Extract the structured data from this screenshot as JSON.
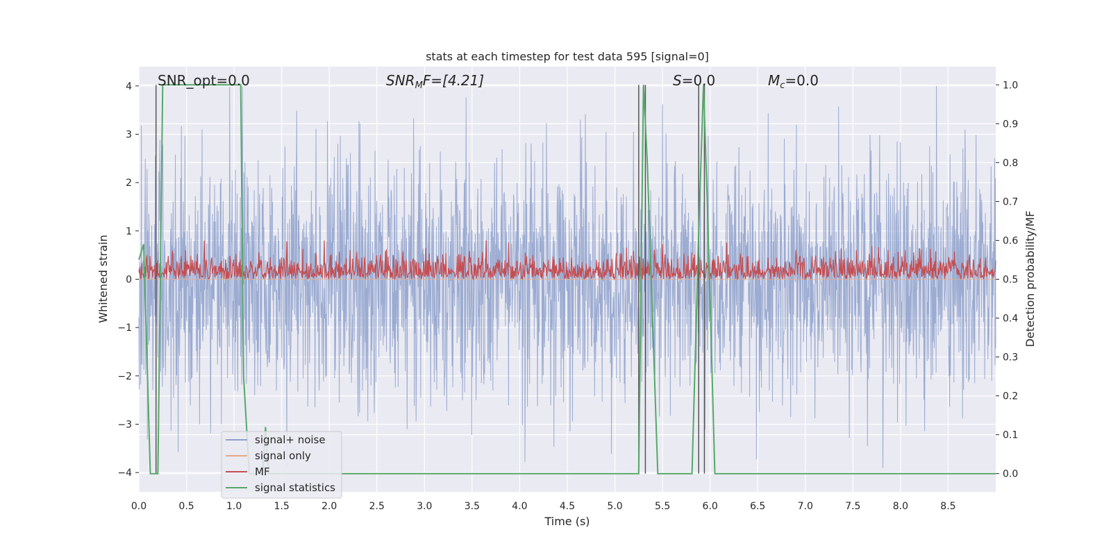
{
  "chart_data": {
    "type": "line",
    "title": "stats at each timestep for test data 595 [signal=0]",
    "xlabel": "Time (s)",
    "ylabel": "Whitened strain",
    "ylabel_right": "Detection probability/MF",
    "xlim": [
      0.0,
      9.0
    ],
    "ylim": [
      -4.4,
      4.4
    ],
    "ylim_right": [
      -0.047,
      1.047
    ],
    "x_ticks": [
      "0.0",
      "0.5",
      "1.0",
      "1.5",
      "2.0",
      "2.5",
      "3.0",
      "3.5",
      "4.0",
      "4.5",
      "5.0",
      "5.5",
      "6.0",
      "6.5",
      "7.0",
      "7.5",
      "8.0",
      "8.5"
    ],
    "y_ticks": [
      "4",
      "3",
      "2",
      "1",
      "0",
      "−1",
      "−2",
      "−3",
      "−4"
    ],
    "y_right_ticks": [
      "1.0",
      "0.9",
      "0.8",
      "0.7",
      "0.6",
      "0.5",
      "0.4",
      "0.3",
      "0.2",
      "0.1",
      "0.0"
    ],
    "grid": true,
    "legend_position": "lower-left",
    "annotations": {
      "snr_opt": "SNR_opt=0.0",
      "snr_mf_main": "SNR",
      "snr_mf_sub": "M",
      "snr_mf_rest": "F=[4.21]",
      "s_main": "S",
      "s_rest": "=0.0",
      "mc_main": "M",
      "mc_sub": "c",
      "mc_rest": "=0.0"
    },
    "series": [
      {
        "name": "signal+ noise",
        "color": "#8da0cb",
        "note_values": "white noise, amplitude ~N(0,1), peaks up to ~4"
      },
      {
        "name": "signal only",
        "color": "#e8a889",
        "values": "flat at 0"
      },
      {
        "name": "MF",
        "color": "#c44e52",
        "range_right_axis": [
          0.5,
          0.6
        ]
      },
      {
        "name": "signal statistics",
        "color": "#55a868",
        "x": [
          0.0,
          0.05,
          0.12,
          0.2,
          0.25,
          1.04,
          1.07,
          1.1,
          1.16,
          1.2,
          1.3,
          1.33,
          1.36,
          2.0,
          5.25,
          5.3,
          5.34,
          5.45,
          5.81,
          5.88,
          5.93,
          5.97,
          6.05,
          9.0
        ],
        "y": [
          0.55,
          0.59,
          0.0,
          0.0,
          1.0,
          1.0,
          1.0,
          0.25,
          0.0,
          0.0,
          0.0,
          0.12,
          0.0,
          0.0,
          0.0,
          1.0,
          0.8,
          0.0,
          0.0,
          0.62,
          1.0,
          0.7,
          0.0,
          0.0
        ]
      }
    ],
    "vertical_lines_x": [
      0.18,
      5.25,
      5.32,
      5.88,
      5.94
    ]
  },
  "colors": {
    "axes_bg": "#eaeaf2",
    "grid": "#ffffff",
    "vline": "#555555"
  }
}
